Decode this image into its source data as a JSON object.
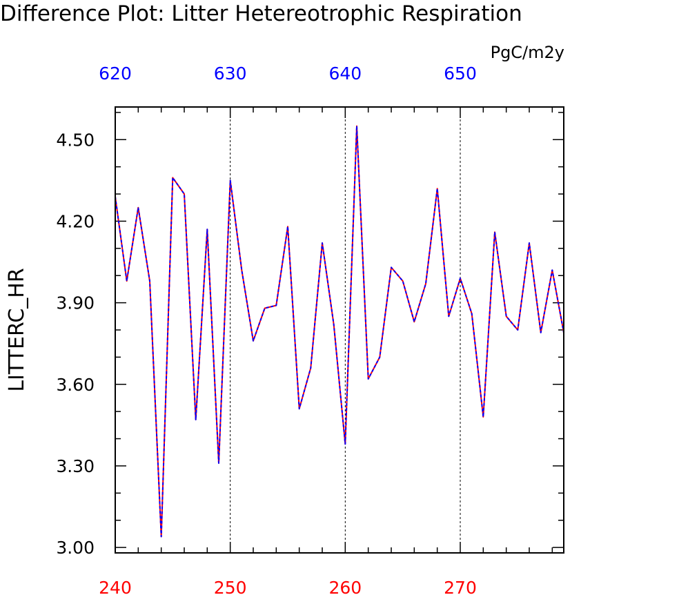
{
  "chart_data": {
    "type": "line",
    "title": "Difference Plot: Litter Hetereotrophic Respiration",
    "ylabel": "LITTERC_HR",
    "units": "PgC/m2y",
    "xlim": [
      240,
      279
    ],
    "ylim": [
      2.98,
      4.62
    ],
    "bottom_axis": {
      "ticks": [
        240,
        250,
        260,
        270
      ],
      "tick_labels": [
        "240",
        "250",
        "260",
        "270"
      ],
      "color": "#ff0000"
    },
    "top_axis": {
      "tick_labels": [
        "620",
        "630",
        "640",
        "650"
      ],
      "color": "#0000ff"
    },
    "y_ticks": [
      3.0,
      3.3,
      3.6,
      3.9,
      4.2,
      4.5
    ],
    "y_tick_labels": [
      "3.00",
      "3.30",
      "3.60",
      "3.90",
      "4.20",
      "4.50"
    ],
    "grid": "dashed vertical at major x ticks",
    "x": [
      240,
      241,
      242,
      243,
      244,
      245,
      246,
      247,
      248,
      249,
      250,
      251,
      252,
      253,
      254,
      255,
      256,
      257,
      258,
      259,
      260,
      261,
      262,
      263,
      264,
      265,
      266,
      267,
      268,
      269,
      270,
      271,
      272,
      273,
      274,
      275,
      276,
      277,
      278,
      279
    ],
    "series": [
      {
        "color": "#ff0000",
        "style": "solid",
        "values": [
          4.29,
          3.98,
          4.25,
          3.98,
          3.04,
          4.36,
          4.3,
          3.47,
          4.17,
          3.31,
          4.35,
          4.02,
          3.76,
          3.88,
          3.89,
          4.18,
          3.51,
          3.66,
          4.12,
          3.82,
          3.38,
          4.55,
          3.62,
          3.7,
          4.03,
          3.98,
          3.83,
          3.97,
          4.32,
          3.85,
          3.99,
          3.86,
          3.48,
          4.16,
          3.85,
          3.8,
          4.12,
          3.79,
          4.02,
          3.79
        ]
      },
      {
        "color": "#0000ff",
        "style": "dashed",
        "values": [
          4.29,
          3.98,
          4.25,
          3.98,
          3.04,
          4.36,
          4.3,
          3.47,
          4.17,
          3.31,
          4.35,
          4.02,
          3.76,
          3.88,
          3.89,
          4.18,
          3.51,
          3.66,
          4.12,
          3.82,
          3.38,
          4.55,
          3.62,
          3.7,
          4.03,
          3.98,
          3.83,
          3.97,
          4.32,
          3.85,
          3.99,
          3.86,
          3.48,
          4.16,
          3.85,
          3.8,
          4.12,
          3.79,
          4.02,
          3.79
        ]
      }
    ]
  }
}
